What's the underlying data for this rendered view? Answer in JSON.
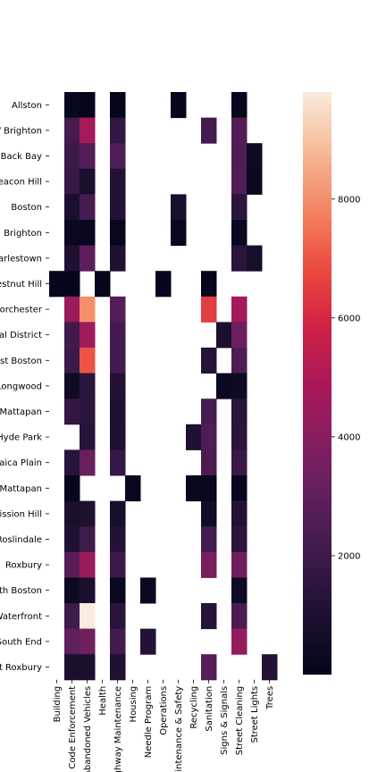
{
  "chart_data": {
    "type": "heatmap",
    "title": "",
    "xlabel": "",
    "ylabel": "",
    "colormap": "rocket",
    "columns": [
      "Building",
      "Code Enforcement",
      "Abandoned Vehicles",
      "Health",
      "Highway Maintenance",
      "Housing",
      "Needle Program",
      "Operations",
      "Park Maintenance & Safety",
      "Recycling",
      "Sanitation",
      "Signs & Signals",
      "Street Cleaning",
      "Street Lights",
      "Trees"
    ],
    "rows": [
      "Allston",
      "Allston / Brighton",
      "Back Bay",
      "Beacon Hill",
      "Boston",
      "Brighton",
      "Charlestown",
      "Chestnut Hill",
      "Dorchester",
      "Downtown / Financial District",
      "East Boston",
      "Fenway / Kenmore / Audubon Circle / Longwood",
      "Greater Mattapan",
      "Hyde Park",
      "Jamaica Plain",
      "Mattapan",
      "Mission Hill",
      "Roslindale",
      "Roxbury",
      "South Boston",
      "South Boston / South Boston Waterfront",
      "South End",
      "West Roxbury"
    ],
    "values": [
      [
        null,
        150,
        80,
        null,
        120,
        null,
        null,
        null,
        60,
        null,
        null,
        null,
        150,
        null,
        null
      ],
      [
        null,
        2300,
        4800,
        null,
        1700,
        null,
        null,
        null,
        null,
        null,
        2200,
        null,
        2600,
        null,
        null
      ],
      [
        null,
        2000,
        2600,
        null,
        2500,
        null,
        null,
        null,
        null,
        null,
        null,
        null,
        2500,
        500,
        null
      ],
      [
        null,
        1800,
        900,
        null,
        1200,
        null,
        null,
        null,
        null,
        null,
        null,
        null,
        2600,
        300,
        null
      ],
      [
        null,
        900,
        2300,
        null,
        1200,
        null,
        null,
        null,
        900,
        null,
        null,
        null,
        1500,
        null,
        null
      ],
      [
        null,
        300,
        250,
        null,
        200,
        null,
        null,
        null,
        200,
        null,
        null,
        null,
        300,
        null,
        null
      ],
      [
        null,
        1100,
        2900,
        null,
        1100,
        null,
        null,
        null,
        null,
        null,
        null,
        null,
        1400,
        800,
        null
      ],
      [
        80,
        80,
        null,
        60,
        null,
        null,
        null,
        80,
        null,
        null,
        60,
        null,
        null,
        null,
        null
      ],
      [
        null,
        4500,
        8000,
        null,
        2700,
        null,
        null,
        null,
        null,
        null,
        6500,
        null,
        4700,
        null,
        null
      ],
      [
        null,
        2100,
        4600,
        null,
        2200,
        null,
        null,
        null,
        null,
        null,
        null,
        900,
        3300,
        null,
        null
      ],
      [
        null,
        2000,
        7000,
        null,
        2200,
        null,
        null,
        null,
        null,
        null,
        1300,
        null,
        2500,
        null,
        null
      ],
      [
        null,
        500,
        1400,
        null,
        1200,
        null,
        null,
        null,
        null,
        null,
        null,
        300,
        500,
        null,
        null
      ],
      [
        null,
        1700,
        1500,
        null,
        1000,
        null,
        null,
        null,
        null,
        null,
        2300,
        null,
        1400,
        null,
        null
      ],
      [
        null,
        null,
        1300,
        null,
        1100,
        null,
        null,
        null,
        null,
        1000,
        2500,
        null,
        1500,
        null,
        null
      ],
      [
        null,
        1400,
        3200,
        null,
        1800,
        null,
        null,
        null,
        null,
        null,
        2400,
        null,
        1900,
        null,
        null
      ],
      [
        null,
        200,
        null,
        null,
        null,
        250,
        null,
        null,
        null,
        150,
        200,
        null,
        200,
        null,
        null
      ],
      [
        null,
        900,
        1000,
        null,
        800,
        null,
        null,
        null,
        null,
        null,
        600,
        null,
        1200,
        null,
        null
      ],
      [
        null,
        1100,
        2100,
        null,
        1200,
        null,
        null,
        null,
        null,
        null,
        2200,
        null,
        1500,
        null,
        null
      ],
      [
        null,
        2800,
        4500,
        null,
        2000,
        null,
        null,
        null,
        null,
        null,
        3600,
        null,
        3400,
        null,
        null
      ],
      [
        null,
        400,
        900,
        null,
        300,
        null,
        300,
        null,
        null,
        null,
        null,
        null,
        500,
        null,
        null
      ],
      [
        null,
        2100,
        9800,
        null,
        1400,
        null,
        null,
        null,
        null,
        null,
        1300,
        null,
        2400,
        null,
        null
      ],
      [
        null,
        3000,
        3400,
        null,
        2200,
        null,
        1200,
        null,
        null,
        null,
        null,
        null,
        4300,
        null,
        null
      ],
      [
        null,
        900,
        900,
        null,
        1100,
        null,
        null,
        null,
        null,
        null,
        2700,
        null,
        null,
        null,
        1200
      ]
    ],
    "colorbar": {
      "min": 0,
      "max": 9800,
      "ticks": [
        2000,
        4000,
        6000,
        8000
      ]
    }
  }
}
